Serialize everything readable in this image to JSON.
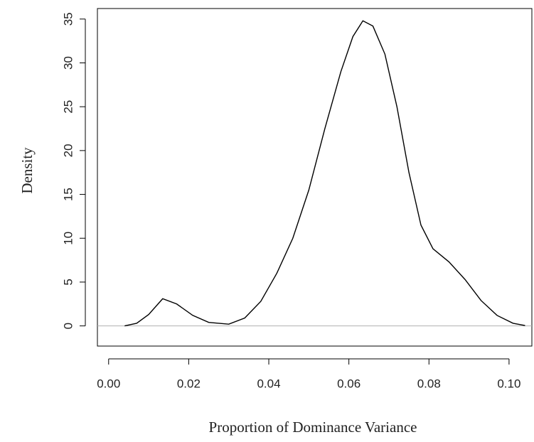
{
  "chart_data": {
    "type": "line",
    "x_label": "Proportion of Dominance Variance",
    "y_label": "Density",
    "x": [
      0.004,
      0.007,
      0.01,
      0.0135,
      0.017,
      0.021,
      0.025,
      0.03,
      0.034,
      0.038,
      0.042,
      0.046,
      0.05,
      0.054,
      0.058,
      0.061,
      0.0635,
      0.066,
      0.069,
      0.072,
      0.075,
      0.078,
      0.081,
      0.085,
      0.089,
      0.093,
      0.097,
      0.101,
      0.104
    ],
    "values": [
      0,
      0.3,
      1.3,
      3.1,
      2.5,
      1.2,
      0.4,
      0.2,
      0.9,
      2.8,
      6,
      10,
      15.5,
      22.5,
      29,
      33,
      34.8,
      34.2,
      31,
      25,
      17.5,
      11.5,
      8.8,
      7.3,
      5.3,
      2.9,
      1.2,
      0.3,
      0.05
    ],
    "color": "#000000",
    "xlim": [
      -0.0028,
      0.1057
    ],
    "ylim": [
      -2.3,
      36.2
    ],
    "xticks": [
      {
        "value": 0,
        "label": "0.00"
      },
      {
        "value": 0.02,
        "label": "0.02"
      },
      {
        "value": 0.04,
        "label": "0.04"
      },
      {
        "value": 0.06,
        "label": "0.06"
      },
      {
        "value": 0.08,
        "label": "0.08"
      },
      {
        "value": 0.1,
        "label": "0.10"
      }
    ],
    "yticks": [
      0,
      5,
      10,
      15,
      20,
      25,
      30,
      35
    ],
    "zero_line": true,
    "zero_line_color": "#b0b0b0"
  }
}
